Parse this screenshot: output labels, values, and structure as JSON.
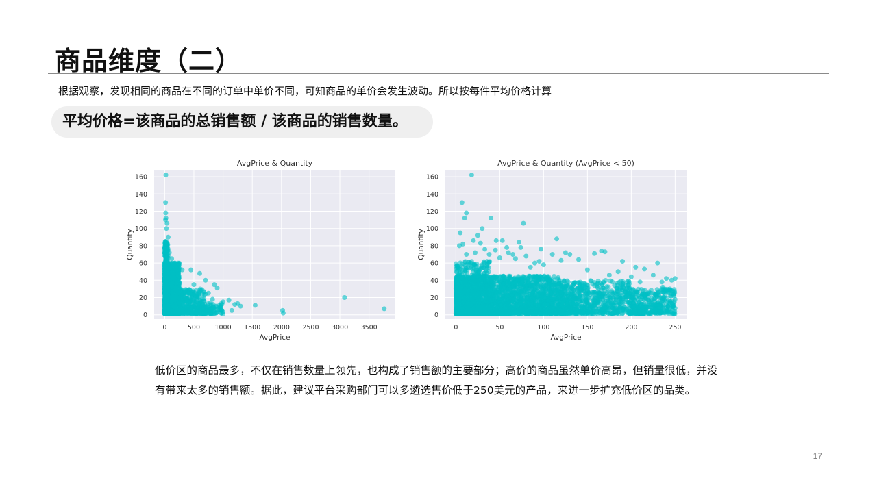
{
  "slide": {
    "title": "商品维度（二）",
    "intro": "根据观察，发现相同的商品在不同的订单中单价不同，可知商品的单价会发生波动。所以按每件平均价格计算",
    "formula": "平均价格=该商品的总销售额 / 该商品的销售数量。",
    "conclusion": "低价区的商品最多，不仅在销售数量上领先，也构成了销售额的主要部分；高价的商品虽然单价高昂，但销量很低，并没有带来太多的销售额。据此，建议平台采购部门可以多遴选售价低于250美元的产品，来进一步扩充低价区的品类。",
    "page_number": "17"
  },
  "chart_data": [
    {
      "type": "scatter",
      "title": "AvgPrice & Quantity",
      "xlabel": "AvgPrice",
      "ylabel": "Quantity",
      "xlim": [
        -180,
        3950
      ],
      "ylim": [
        -5,
        168
      ],
      "xticks": [
        0,
        500,
        1000,
        1500,
        2000,
        2500,
        3000,
        3500
      ],
      "yticks": [
        0,
        20,
        40,
        60,
        80,
        100,
        120,
        140,
        160
      ],
      "grid": true,
      "color": "#00bfc4",
      "background": "#eaeaf2",
      "points": [
        [
          20,
          162
        ],
        [
          15,
          130
        ],
        [
          18,
          118
        ],
        [
          22,
          112
        ],
        [
          14,
          110
        ],
        [
          40,
          106
        ],
        [
          30,
          100
        ],
        [
          60,
          90
        ],
        [
          10,
          85
        ],
        [
          25,
          82
        ],
        [
          45,
          78
        ],
        [
          80,
          72
        ],
        [
          120,
          65
        ],
        [
          200,
          55
        ],
        [
          300,
          52
        ],
        [
          450,
          52
        ],
        [
          600,
          48
        ],
        [
          700,
          40
        ],
        [
          500,
          35
        ],
        [
          850,
          35
        ],
        [
          900,
          31
        ],
        [
          750,
          25
        ],
        [
          820,
          18
        ],
        [
          1000,
          15
        ],
        [
          950,
          8
        ],
        [
          980,
          5
        ],
        [
          1000,
          3
        ],
        [
          1100,
          17
        ],
        [
          1150,
          5
        ],
        [
          1250,
          13
        ],
        [
          1300,
          10
        ],
        [
          1550,
          11
        ],
        [
          2020,
          5
        ],
        [
          2030,
          2
        ],
        [
          3080,
          20
        ],
        [
          3760,
          7
        ],
        [
          250,
          30
        ],
        [
          350,
          28
        ],
        [
          150,
          45
        ],
        [
          550,
          22
        ],
        [
          650,
          12
        ],
        [
          400,
          15
        ],
        [
          100,
          55
        ],
        [
          60,
          68
        ],
        [
          35,
          75
        ],
        [
          700,
          8
        ],
        [
          880,
          10
        ],
        [
          1200,
          12
        ],
        [
          800,
          5
        ],
        [
          450,
          8
        ]
      ],
      "dense_clusters": [
        {
          "x": [
            0,
            250
          ],
          "y": [
            1,
            60
          ],
          "count": 1600
        },
        {
          "x": [
            0,
            60
          ],
          "y": [
            1,
            85
          ],
          "count": 500
        },
        {
          "x": [
            250,
            700
          ],
          "y": [
            1,
            30
          ],
          "count": 350
        },
        {
          "x": [
            700,
            1000
          ],
          "y": [
            1,
            14
          ],
          "count": 70
        }
      ]
    },
    {
      "type": "scatter",
      "title": "AvgPrice & Quantity (AvgPrice < 50)",
      "xlabel": "AvgPrice",
      "ylabel": "Quantity",
      "xlim": [
        -12,
        263
      ],
      "ylim": [
        -5,
        168
      ],
      "xticks": [
        0,
        50,
        100,
        150,
        200,
        250
      ],
      "yticks": [
        0,
        20,
        40,
        60,
        80,
        100,
        120,
        140,
        160
      ],
      "grid": true,
      "color": "#00bfc4",
      "background": "#eaeaf2",
      "points": [
        [
          18,
          162
        ],
        [
          7,
          130
        ],
        [
          12,
          118
        ],
        [
          10,
          112
        ],
        [
          40,
          112
        ],
        [
          77,
          106
        ],
        [
          30,
          100
        ],
        [
          5,
          95
        ],
        [
          25,
          92
        ],
        [
          115,
          88
        ],
        [
          46,
          86
        ],
        [
          53,
          86
        ],
        [
          72,
          84
        ],
        [
          4,
          80
        ],
        [
          8,
          82
        ],
        [
          20,
          86
        ],
        [
          28,
          83
        ],
        [
          58,
          78
        ],
        [
          74,
          78
        ],
        [
          97,
          76
        ],
        [
          110,
          70
        ],
        [
          125,
          72
        ],
        [
          130,
          70
        ],
        [
          158,
          71
        ],
        [
          166,
          74
        ],
        [
          170,
          73
        ],
        [
          205,
          55
        ],
        [
          215,
          53
        ],
        [
          190,
          62
        ],
        [
          230,
          60
        ],
        [
          140,
          64
        ],
        [
          120,
          63
        ],
        [
          80,
          68
        ],
        [
          90,
          60
        ],
        [
          60,
          72
        ],
        [
          65,
          70
        ],
        [
          45,
          75
        ],
        [
          240,
          42
        ],
        [
          235,
          38
        ],
        [
          246,
          40
        ],
        [
          250,
          42
        ],
        [
          236,
          32
        ],
        [
          244,
          30
        ],
        [
          225,
          46
        ],
        [
          210,
          38
        ],
        [
          200,
          44
        ],
        [
          185,
          50
        ],
        [
          175,
          46
        ],
        [
          150,
          52
        ],
        [
          100,
          58
        ],
        [
          95,
          62
        ],
        [
          85,
          55
        ],
        [
          68,
          65
        ],
        [
          50,
          66
        ],
        [
          38,
          70
        ],
        [
          17,
          60
        ],
        [
          22,
          72
        ],
        [
          33,
          76
        ],
        [
          12,
          70
        ]
      ],
      "dense_clusters": [
        {
          "x": [
            0,
            120
          ],
          "y": [
            1,
            45
          ],
          "count": 2400
        },
        {
          "x": [
            0,
            40
          ],
          "y": [
            1,
            62
          ],
          "count": 600
        },
        {
          "x": [
            120,
            200
          ],
          "y": [
            1,
            40
          ],
          "count": 700
        },
        {
          "x": [
            200,
            250
          ],
          "y": [
            1,
            30
          ],
          "count": 350
        }
      ]
    }
  ]
}
